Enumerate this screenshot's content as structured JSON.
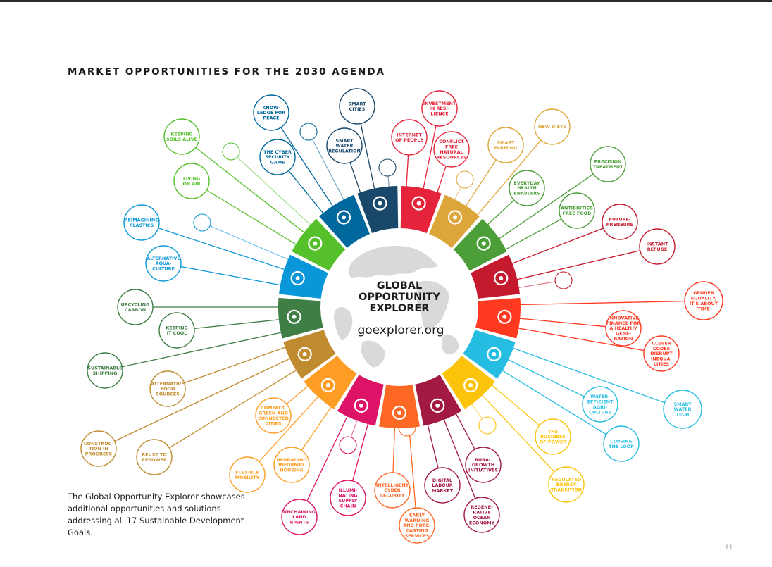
{
  "page_title": "MARKET OPPORTUNITIES FOR THE 2030 AGENDA",
  "hub": {
    "lines": [
      "GLOBAL",
      "OPPORTUNITY",
      "EXPLORER"
    ],
    "url": "goexplorer.org"
  },
  "footnote": "The Global Opportunity Explorer showcases additional opportunities and solutions addressing all 17 Sustainable Development Goals.",
  "page_number": "11",
  "goals": [
    {
      "id": "goal-1",
      "color": "#e5243b",
      "icon": "family-icon"
    },
    {
      "id": "goal-2",
      "color": "#dda63a",
      "icon": "food-bowl-icon"
    },
    {
      "id": "goal-3",
      "color": "#4c9f38",
      "icon": "heartbeat-icon"
    },
    {
      "id": "goal-4",
      "color": "#c5192d",
      "icon": "book-icon"
    },
    {
      "id": "goal-5",
      "color": "#ff3a21",
      "icon": "gender-equality-icon"
    },
    {
      "id": "goal-6",
      "color": "#26bde2",
      "icon": "water-drop-icon"
    },
    {
      "id": "goal-7",
      "color": "#fcc30b",
      "icon": "sun-energy-icon"
    },
    {
      "id": "goal-8",
      "color": "#a21942",
      "icon": "growth-chart-icon"
    },
    {
      "id": "goal-9",
      "color": "#fd6925",
      "icon": "cubes-icon"
    },
    {
      "id": "goal-10",
      "color": "#dd1367",
      "icon": "inequality-arrows-icon"
    },
    {
      "id": "goal-11",
      "color": "#fd9d24",
      "icon": "city-buildings-icon"
    },
    {
      "id": "goal-12",
      "color": "#bf8b2e",
      "icon": "infinity-icon"
    },
    {
      "id": "goal-13",
      "color": "#3f7e44",
      "icon": "eye-globe-icon"
    },
    {
      "id": "goal-14",
      "color": "#0a97d9",
      "icon": "fish-waves-icon"
    },
    {
      "id": "goal-15",
      "color": "#56c02b",
      "icon": "tree-birds-icon"
    },
    {
      "id": "goal-16",
      "color": "#00689d",
      "icon": "dove-icon"
    },
    {
      "id": "goal-17",
      "color": "#19486a",
      "icon": "partnership-rings-icon"
    }
  ],
  "opportunities": [
    {
      "goal": "goal-16",
      "lines": [
        "KNOW-",
        "LEDGE FOR",
        "PEACE"
      ]
    },
    {
      "goal": "goal-16",
      "lines": [
        "THE CYBER",
        "SECURITY",
        "GAME"
      ]
    },
    {
      "goal": "goal-17",
      "lines": [
        "SMART",
        "CITIES"
      ]
    },
    {
      "goal": "goal-17",
      "lines": [
        "SMART",
        "WATER",
        "REGULATION"
      ]
    },
    {
      "goal": "goal-1",
      "lines": [
        "INVESTMENT",
        "IN RESI-",
        "LIENCE"
      ]
    },
    {
      "goal": "goal-1",
      "lines": [
        "INTERNET",
        "OF PEOPLE"
      ]
    },
    {
      "goal": "goal-1",
      "lines": [
        "CONFLICT",
        "FREE",
        "NATURAL",
        "RESOURCES"
      ]
    },
    {
      "goal": "goal-2",
      "lines": [
        "SMART",
        "FARMING"
      ]
    },
    {
      "goal": "goal-2",
      "lines": [
        "NEW DIETS"
      ]
    },
    {
      "goal": "goal-3",
      "lines": [
        "PRECISION",
        "TREATMENT"
      ]
    },
    {
      "goal": "goal-3",
      "lines": [
        "EVERYDAY",
        "HEALTH",
        "ENABLERS"
      ]
    },
    {
      "goal": "goal-3",
      "lines": [
        "ANTIBIOTICS",
        "FREE FOOD"
      ]
    },
    {
      "goal": "goal-4",
      "lines": [
        "FUTURE-",
        "PRENEURS"
      ]
    },
    {
      "goal": "goal-4",
      "lines": [
        "INSTANT",
        "REFUGE"
      ]
    },
    {
      "goal": "goal-5",
      "lines": [
        "GENDER",
        "EQUALITY,",
        "IT'S ABOUT",
        "TIME"
      ]
    },
    {
      "goal": "goal-5",
      "lines": [
        "INNOVATIVE",
        "FINANCE FOR",
        "A HEALTHY",
        "GENE-",
        "RATION"
      ]
    },
    {
      "goal": "goal-5",
      "lines": [
        "CLEVER",
        "CODES",
        "DISRUPT",
        "INEQUA-",
        "LITIES"
      ]
    },
    {
      "goal": "goal-6",
      "lines": [
        "SMART",
        "WATER",
        "TECH"
      ]
    },
    {
      "goal": "goal-6",
      "lines": [
        "WATER-",
        "EFFICIENT",
        "AGRI-",
        "CULTURE"
      ]
    },
    {
      "goal": "goal-6",
      "lines": [
        "CLOSING",
        "THE LOOP"
      ]
    },
    {
      "goal": "goal-7",
      "lines": [
        "THE",
        "BUSINESS",
        "OF POWER"
      ]
    },
    {
      "goal": "goal-7",
      "lines": [
        "REGULATED",
        "ENERGY",
        "TRANSITION"
      ]
    },
    {
      "goal": "goal-8",
      "lines": [
        "RURAL",
        "GROWTH",
        "INITIATIVES"
      ]
    },
    {
      "goal": "goal-8",
      "lines": [
        "DIGITAL",
        "LABOUR",
        "MARKET"
      ]
    },
    {
      "goal": "goal-8",
      "lines": [
        "REGENE-",
        "RATIVE",
        "OCEAN",
        "ECONOMY"
      ]
    },
    {
      "goal": "goal-9",
      "lines": [
        "INTELLIGENT",
        "CYBER",
        "SECURITY"
      ]
    },
    {
      "goal": "goal-9",
      "lines": [
        "EARLY",
        "WARNING",
        "AND FORE-",
        "CASTING",
        "SERVICES"
      ]
    },
    {
      "goal": "goal-10",
      "lines": [
        "ILLUMI-",
        "NATING",
        "SUPPLY",
        "CHAIN"
      ]
    },
    {
      "goal": "goal-10",
      "lines": [
        "UNCHAINING",
        "LAND",
        "RIGHTS"
      ]
    },
    {
      "goal": "goal-11",
      "lines": [
        "UPGRADING",
        "INFORMAL",
        "HOUSING"
      ]
    },
    {
      "goal": "goal-11",
      "lines": [
        "FLEXIBLE",
        "MOBILITY"
      ]
    },
    {
      "goal": "goal-11",
      "lines": [
        "COMPACT,",
        "GREEN AND",
        "CONNECTED",
        "CITIES"
      ]
    },
    {
      "goal": "goal-12",
      "lines": [
        "REUSE TO",
        "REPOWER"
      ]
    },
    {
      "goal": "goal-12",
      "lines": [
        "CONSTRUC-",
        "TION IN",
        "PROGRESS"
      ]
    },
    {
      "goal": "goal-12",
      "lines": [
        "ALTERNATIVE",
        "FOOD",
        "SOURCES"
      ]
    },
    {
      "goal": "goal-13",
      "lines": [
        "SUSTAINABLE",
        "SHIPPING"
      ]
    },
    {
      "goal": "goal-13",
      "lines": [
        "KEEPING",
        "IT COOL"
      ]
    },
    {
      "goal": "goal-13",
      "lines": [
        "UPCYCLING",
        "CARBON"
      ]
    },
    {
      "goal": "goal-14",
      "lines": [
        "ALTERNATIVE",
        "AQUA-",
        "CULTURE"
      ]
    },
    {
      "goal": "goal-14",
      "lines": [
        "REIMAGINING",
        "PLASTICS"
      ]
    },
    {
      "goal": "goal-15",
      "lines": [
        "LIVING",
        "ON AIR"
      ]
    },
    {
      "goal": "goal-15",
      "lines": [
        "KEEPING",
        "SOILS ALIVE"
      ]
    }
  ],
  "placeholders": [
    {
      "goal": "goal-16"
    },
    {
      "goal": "goal-17"
    },
    {
      "goal": "goal-2"
    },
    {
      "goal": "goal-4"
    },
    {
      "goal": "goal-7"
    },
    {
      "goal": "goal-9"
    },
    {
      "goal": "goal-10"
    },
    {
      "goal": "goal-15"
    },
    {
      "goal": "goal-14"
    }
  ]
}
